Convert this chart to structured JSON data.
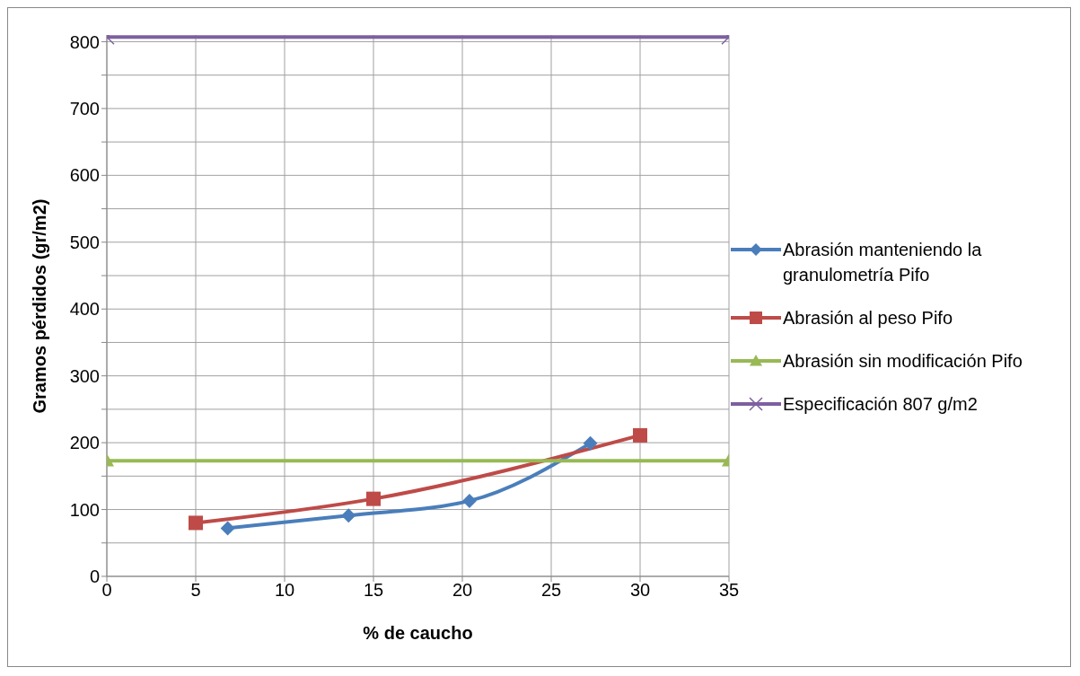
{
  "chart_data": {
    "type": "line",
    "xlabel": "% de caucho",
    "ylabel": "Gramos pérdidos (gr/m2)",
    "xlim": [
      0,
      35
    ],
    "xticks": [
      0,
      5,
      10,
      15,
      20,
      25,
      30,
      35
    ],
    "ylim": [
      0,
      810
    ],
    "yticks": [
      0,
      {
        "value": 50,
        "label": null
      },
      100,
      {
        "value": 150,
        "label": null
      },
      200,
      {
        "value": 250,
        "label": null
      },
      300,
      {
        "value": 350,
        "label": null
      },
      400,
      {
        "value": 450,
        "label": null
      },
      500,
      {
        "value": 550,
        "label": null
      },
      600,
      {
        "value": 650,
        "label": null
      },
      700,
      {
        "value": 750,
        "label": null
      },
      800
    ],
    "grid": true,
    "legend": "right",
    "line_style": "solid",
    "series": [
      {
        "name": "Abrasión manteniendo la granulometría Pifo",
        "color": "#4a7ebb",
        "marker": "diamond",
        "x": [
          6.8,
          13.6,
          20.4,
          27.2
        ],
        "values": [
          72,
          91,
          113,
          199
        ]
      },
      {
        "name": "Abrasión al peso Pifo",
        "color": "#be4b48",
        "marker": "square",
        "x": [
          5,
          15,
          30
        ],
        "values": [
          80,
          116,
          211
        ]
      },
      {
        "name": "Abrasión sin modificación Pifo",
        "color": "#98b954",
        "marker": "triangle",
        "x": [
          0,
          35
        ],
        "values": [
          173,
          173
        ]
      },
      {
        "name": "Especificación 807 g/m2",
        "color": "#7d60a0",
        "marker": "cross",
        "x": [
          0,
          35
        ],
        "values": [
          807,
          807
        ]
      }
    ]
  }
}
